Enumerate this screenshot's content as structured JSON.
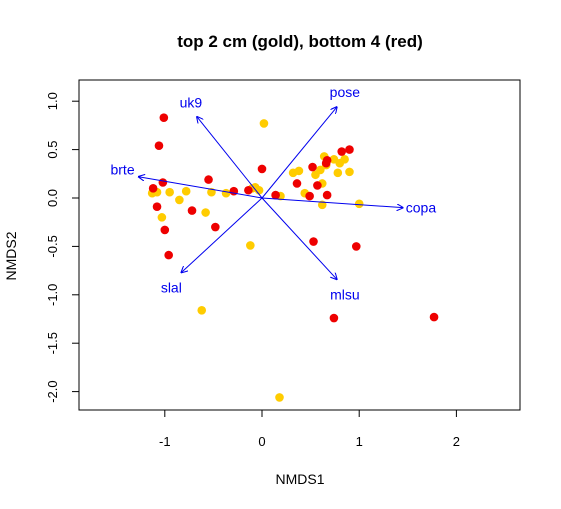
{
  "chart_data": {
    "type": "scatter",
    "title": "top 2 cm (gold), bottom 4 (red)",
    "xlabel": "NMDS1",
    "ylabel": "NMDS2",
    "xlim": [
      -1.8,
      2.6
    ],
    "ylim": [
      -2.15,
      1.25
    ],
    "x_ticks": [
      -1,
      0,
      1,
      2
    ],
    "y_ticks": [
      1.0,
      0.5,
      0.0,
      -0.5,
      -1.0,
      -1.5,
      -2.0
    ],
    "x_tick_labels": [
      "-1",
      "0",
      "1",
      "2"
    ],
    "y_tick_labels": [
      "1.0",
      "0.5",
      "0.0",
      "-0.5",
      "-1.0",
      "-1.5",
      "-2.0"
    ],
    "grid": false,
    "series": [
      {
        "color": "#FFCC00",
        "points": [
          [
            0.02,
            0.77
          ],
          [
            -1.13,
            0.05
          ],
          [
            -1.08,
            0.06
          ],
          [
            -1.03,
            -0.2
          ],
          [
            -0.95,
            0.06
          ],
          [
            -0.85,
            -0.02
          ],
          [
            -0.78,
            0.07
          ],
          [
            -0.58,
            -0.15
          ],
          [
            -0.52,
            0.06
          ],
          [
            -0.37,
            0.05
          ],
          [
            -0.12,
            -0.49
          ],
          [
            -0.1,
            0.1
          ],
          [
            -0.07,
            0.11
          ],
          [
            -0.03,
            0.08
          ],
          [
            0.19,
            0.02
          ],
          [
            0.32,
            0.26
          ],
          [
            0.38,
            0.28
          ],
          [
            0.44,
            0.05
          ],
          [
            0.55,
            0.24
          ],
          [
            0.6,
            0.29
          ],
          [
            0.62,
            0.15
          ],
          [
            0.64,
            0.43
          ],
          [
            0.66,
            0.34
          ],
          [
            0.74,
            0.4
          ],
          [
            0.78,
            0.26
          ],
          [
            0.8,
            0.36
          ],
          [
            0.85,
            0.4
          ],
          [
            0.9,
            0.27
          ],
          [
            1.0,
            -0.06
          ],
          [
            0.62,
            -0.07
          ],
          [
            -0.62,
            -1.16
          ],
          [
            0.18,
            -2.06
          ]
        ]
      },
      {
        "color": "#EE0000",
        "points": [
          [
            -1.01,
            0.83
          ],
          [
            -1.06,
            0.54
          ],
          [
            -1.02,
            0.16
          ],
          [
            -1.12,
            0.1
          ],
          [
            -1.08,
            -0.09
          ],
          [
            -1.0,
            -0.33
          ],
          [
            -0.96,
            -0.59
          ],
          [
            -0.72,
            -0.13
          ],
          [
            -0.55,
            0.19
          ],
          [
            -0.48,
            -0.3
          ],
          [
            -0.29,
            0.07
          ],
          [
            -0.14,
            0.08
          ],
          [
            0.0,
            0.3
          ],
          [
            0.14,
            0.03
          ],
          [
            0.36,
            0.15
          ],
          [
            0.49,
            0.02
          ],
          [
            0.52,
            0.32
          ],
          [
            0.57,
            0.13
          ],
          [
            0.66,
            0.36
          ],
          [
            0.67,
            0.39
          ],
          [
            0.67,
            0.03
          ],
          [
            0.82,
            0.48
          ],
          [
            0.9,
            0.5
          ],
          [
            0.53,
            -0.45
          ],
          [
            0.97,
            -0.5
          ],
          [
            0.74,
            -1.24
          ],
          [
            1.77,
            -1.23
          ]
        ]
      }
    ],
    "vectors": [
      {
        "label": "uk9",
        "x": -0.67,
        "y": 0.84
      },
      {
        "label": "pose",
        "x": 0.77,
        "y": 0.94
      },
      {
        "label": "brte",
        "x": -1.27,
        "y": 0.22
      },
      {
        "label": "copa",
        "x": 1.45,
        "y": -0.1
      },
      {
        "label": "slal",
        "x": -0.83,
        "y": -0.77
      },
      {
        "label": "mlsu",
        "x": 0.77,
        "y": -0.84
      }
    ],
    "vector_color": "#0000EE"
  }
}
